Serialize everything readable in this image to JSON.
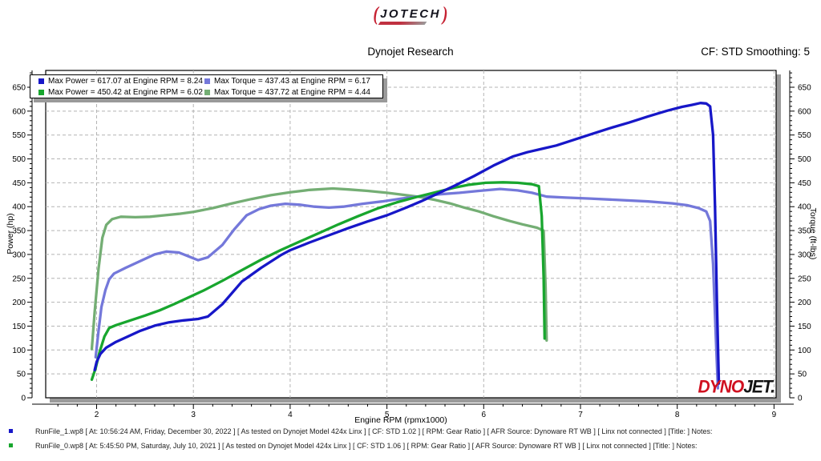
{
  "header": {
    "brand": "JOTECH",
    "title": "Dynojet Research",
    "cf_smoothing": "CF: STD Smoothing: 5"
  },
  "legend": {
    "items": [
      {
        "label": "Max Power = 617.07 at Engine RPM = 8.24",
        "color": "#1717c8"
      },
      {
        "label": "Max Torque = 437.43 at Engine RPM = 6.17",
        "color": "#7478da"
      },
      {
        "label": "Max Power = 450.42 at Engine RPM = 6.02",
        "color": "#18a62e"
      },
      {
        "label": "Max Torque = 437.72 at Engine RPM = 4.44",
        "color": "#74ae74"
      }
    ]
  },
  "watermark": {
    "dyno": "DYNO",
    "jet": "JET."
  },
  "footer": {
    "runs": [
      {
        "bullet_color": "#1717c8",
        "text": "RunFile_1.wp8 [ At: 10:56:24 AM, Friday, December 30, 2022 ] [ As tested on Dynojet Model 424x Linx ] [ CF: STD 1.02 ] [ RPM: Gear Ratio ] [ AFR Source: Dynoware RT WB ] [ Linx not connected ] [Title: ]   Notes:"
      },
      {
        "bullet_color": "#18a62e",
        "text": "RunFile_0.wp8 [ At: 5:45:50 PM, Saturday, July 10, 2021 ] [ As tested on Dynojet Model 424x Linx ] [ CF: STD 1.06 ] [ RPM: Gear Ratio ] [ AFR Source: Dynoware RT WB ] [ Linx not connected ] [Title: ]   Notes:"
      }
    ]
  },
  "chart_data": {
    "type": "line",
    "title": "Dynojet Research",
    "xlabel": "Engine RPM (rpmx1000)",
    "ylabel_left": "Power (hp)",
    "ylabel_right": "Torque (ft-lbs)",
    "xlim": [
      1.47,
      9.03
    ],
    "ylim": [
      0,
      685
    ],
    "x_ticks": [
      2,
      3,
      4,
      5,
      6,
      7,
      8,
      9
    ],
    "x_minor_step": 0.2,
    "y_ticks": [
      0,
      50,
      100,
      150,
      200,
      250,
      300,
      350,
      400,
      450,
      500,
      550,
      600,
      650
    ],
    "y_minor_step": 10,
    "grid": true,
    "grid_color": "#b4b4b4",
    "legend_position": "top-left",
    "series": [
      {
        "name": "RunFile_0 Torque (ft-lbs)",
        "color": "#74ae74",
        "max": {
          "value": 437.72,
          "rpm": 4.44
        },
        "points": [
          [
            1.95,
            102
          ],
          [
            1.98,
            180
          ],
          [
            2.02,
            270
          ],
          [
            2.06,
            335
          ],
          [
            2.1,
            362
          ],
          [
            2.16,
            374
          ],
          [
            2.25,
            379
          ],
          [
            2.4,
            378
          ],
          [
            2.55,
            379
          ],
          [
            2.7,
            382
          ],
          [
            2.85,
            385
          ],
          [
            3.0,
            389
          ],
          [
            3.2,
            397
          ],
          [
            3.4,
            407
          ],
          [
            3.6,
            416
          ],
          [
            3.8,
            424
          ],
          [
            4.0,
            430
          ],
          [
            4.2,
            435
          ],
          [
            4.44,
            438
          ],
          [
            4.6,
            436
          ],
          [
            4.8,
            433
          ],
          [
            5.0,
            429
          ],
          [
            5.2,
            424
          ],
          [
            5.35,
            420
          ],
          [
            5.5,
            414
          ],
          [
            5.65,
            407
          ],
          [
            5.8,
            398
          ],
          [
            5.95,
            390
          ],
          [
            6.1,
            380
          ],
          [
            6.25,
            371
          ],
          [
            6.4,
            363
          ],
          [
            6.55,
            356
          ],
          [
            6.62,
            350
          ],
          [
            6.64,
            230
          ],
          [
            6.65,
            120
          ]
        ]
      },
      {
        "name": "RunFile_1 Torque (ft-lbs)",
        "color": "#7478da",
        "max": {
          "value": 437.43,
          "rpm": 6.17
        },
        "points": [
          [
            1.99,
            85
          ],
          [
            2.02,
            140
          ],
          [
            2.05,
            190
          ],
          [
            2.09,
            225
          ],
          [
            2.13,
            248
          ],
          [
            2.18,
            260
          ],
          [
            2.3,
            272
          ],
          [
            2.45,
            286
          ],
          [
            2.6,
            300
          ],
          [
            2.72,
            306
          ],
          [
            2.85,
            304
          ],
          [
            2.95,
            296
          ],
          [
            3.05,
            288
          ],
          [
            3.15,
            294
          ],
          [
            3.3,
            320
          ],
          [
            3.42,
            352
          ],
          [
            3.55,
            382
          ],
          [
            3.68,
            395
          ],
          [
            3.8,
            402
          ],
          [
            3.95,
            406
          ],
          [
            4.1,
            404
          ],
          [
            4.25,
            400
          ],
          [
            4.4,
            398
          ],
          [
            4.55,
            400
          ],
          [
            4.75,
            406
          ],
          [
            4.95,
            411
          ],
          [
            5.15,
            417
          ],
          [
            5.35,
            422
          ],
          [
            5.55,
            426
          ],
          [
            5.75,
            429
          ],
          [
            5.95,
            433
          ],
          [
            6.17,
            437
          ],
          [
            6.35,
            434
          ],
          [
            6.5,
            429
          ],
          [
            6.65,
            421
          ],
          [
            6.85,
            419
          ],
          [
            7.1,
            417
          ],
          [
            7.4,
            414
          ],
          [
            7.7,
            411
          ],
          [
            7.95,
            407
          ],
          [
            8.1,
            403
          ],
          [
            8.22,
            397
          ],
          [
            8.3,
            390
          ],
          [
            8.34,
            370
          ],
          [
            8.37,
            280
          ],
          [
            8.4,
            120
          ],
          [
            8.42,
            20
          ]
        ]
      },
      {
        "name": "RunFile_0 Power (hp)",
        "color": "#18a62e",
        "max": {
          "value": 450.42,
          "rpm": 6.02
        },
        "points": [
          [
            1.95,
            38
          ],
          [
            1.99,
            62
          ],
          [
            2.03,
            95
          ],
          [
            2.08,
            128
          ],
          [
            2.13,
            146
          ],
          [
            2.2,
            152
          ],
          [
            2.35,
            162
          ],
          [
            2.5,
            172
          ],
          [
            2.65,
            183
          ],
          [
            2.8,
            196
          ],
          [
            2.95,
            210
          ],
          [
            3.1,
            224
          ],
          [
            3.3,
            245
          ],
          [
            3.5,
            267
          ],
          [
            3.7,
            289
          ],
          [
            3.9,
            309
          ],
          [
            4.1,
            327
          ],
          [
            4.3,
            345
          ],
          [
            4.5,
            363
          ],
          [
            4.7,
            380
          ],
          [
            4.9,
            396
          ],
          [
            5.1,
            409
          ],
          [
            5.3,
            420
          ],
          [
            5.5,
            430
          ],
          [
            5.7,
            440
          ],
          [
            5.85,
            446
          ],
          [
            6.02,
            450
          ],
          [
            6.2,
            451
          ],
          [
            6.35,
            450
          ],
          [
            6.5,
            447
          ],
          [
            6.57,
            443
          ],
          [
            6.6,
            380
          ],
          [
            6.62,
            250
          ],
          [
            6.63,
            124
          ]
        ]
      },
      {
        "name": "RunFile_1 Power (hp)",
        "color": "#1717c8",
        "max": {
          "value": 617.07,
          "rpm": 8.24
        },
        "points": [
          [
            1.98,
            58
          ],
          [
            2.0,
            75
          ],
          [
            2.04,
            92
          ],
          [
            2.1,
            105
          ],
          [
            2.2,
            117
          ],
          [
            2.32,
            128
          ],
          [
            2.45,
            140
          ],
          [
            2.6,
            151
          ],
          [
            2.75,
            158
          ],
          [
            2.9,
            162
          ],
          [
            3.05,
            165
          ],
          [
            3.15,
            170
          ],
          [
            3.3,
            196
          ],
          [
            3.5,
            243
          ],
          [
            3.7,
            272
          ],
          [
            3.9,
            298
          ],
          [
            4.0,
            309
          ],
          [
            4.2,
            325
          ],
          [
            4.4,
            340
          ],
          [
            4.6,
            355
          ],
          [
            4.8,
            369
          ],
          [
            5.0,
            382
          ],
          [
            5.2,
            398
          ],
          [
            5.35,
            411
          ],
          [
            5.5,
            425
          ],
          [
            5.7,
            444
          ],
          [
            5.9,
            464
          ],
          [
            6.1,
            486
          ],
          [
            6.3,
            505
          ],
          [
            6.45,
            514
          ],
          [
            6.6,
            521
          ],
          [
            6.75,
            528
          ],
          [
            6.9,
            538
          ],
          [
            7.1,
            551
          ],
          [
            7.3,
            564
          ],
          [
            7.5,
            576
          ],
          [
            7.7,
            589
          ],
          [
            7.9,
            601
          ],
          [
            8.05,
            609
          ],
          [
            8.15,
            613
          ],
          [
            8.24,
            617
          ],
          [
            8.3,
            616
          ],
          [
            8.34,
            610
          ],
          [
            8.37,
            550
          ],
          [
            8.39,
            400
          ],
          [
            8.41,
            200
          ],
          [
            8.43,
            30
          ]
        ]
      }
    ]
  }
}
